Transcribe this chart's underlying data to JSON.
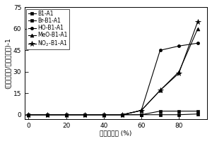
{
  "title": "",
  "xlabel": "水体和分数 (%)",
  "ylabel": "(荧光最大値/荧光初始値)-1",
  "xlim": [
    -2,
    95
  ],
  "ylim": [
    -3,
    75
  ],
  "xticks": [
    0,
    20,
    40,
    60,
    80
  ],
  "yticks": [
    0,
    15,
    30,
    45,
    60,
    75
  ],
  "series": [
    {
      "label": "B1-A1",
      "marker": "s",
      "x": [
        0,
        10,
        20,
        30,
        40,
        50,
        60,
        70,
        80,
        90
      ],
      "y": [
        0,
        0,
        0,
        0,
        0,
        0,
        0,
        2.5,
        2.5,
        2.5
      ]
    },
    {
      "label": "Br-B1-A1",
      "marker": "s",
      "x": [
        0,
        10,
        20,
        30,
        40,
        50,
        60,
        70,
        80,
        90
      ],
      "y": [
        0,
        0,
        0,
        0,
        0,
        0,
        0,
        0,
        0,
        0.5
      ]
    },
    {
      "label": "HO-B1-A1",
      "marker": "o",
      "x": [
        0,
        10,
        20,
        30,
        40,
        50,
        60,
        70,
        80,
        90
      ],
      "y": [
        0,
        0,
        0,
        0,
        0,
        0,
        3,
        45,
        48,
        50
      ]
    },
    {
      "label": "MeO-B1-A1",
      "marker": "^",
      "x": [
        0,
        10,
        20,
        30,
        40,
        50,
        60,
        70,
        80,
        90
      ],
      "y": [
        0,
        0,
        0,
        0,
        0,
        0,
        3,
        17,
        30,
        60
      ]
    },
    {
      "label": "NO$_2$-B1-A1",
      "marker": "*",
      "x": [
        0,
        10,
        20,
        30,
        40,
        50,
        60,
        70,
        80,
        90
      ],
      "y": [
        0,
        0,
        0,
        0,
        0,
        0,
        3,
        17,
        29,
        65
      ]
    }
  ],
  "line_color": "#000000",
  "legend_fontsize": 5.5,
  "tick_fontsize": 6.5,
  "label_fontsize": 6.5,
  "marker_sizes": [
    3,
    3,
    3,
    3.5,
    5.5
  ]
}
